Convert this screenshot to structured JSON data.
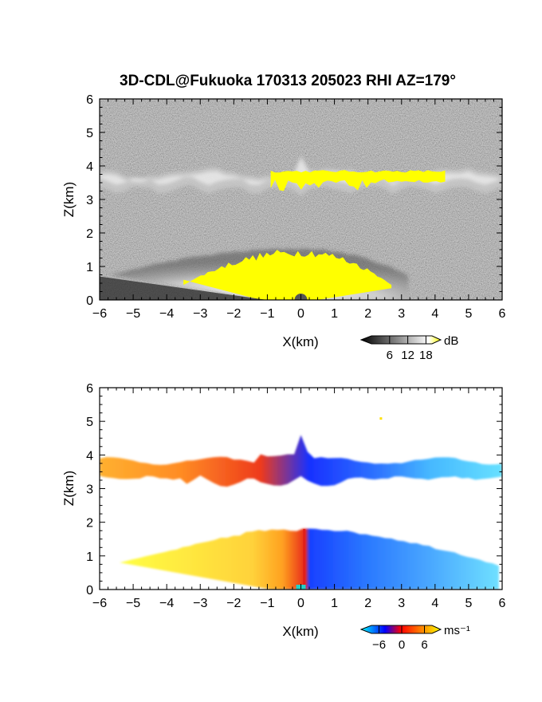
{
  "title": "3D-CDL@Fukuoka 170313 205023 RHI AZ=179°",
  "chart_data": [
    {
      "type": "heatmap",
      "title": "3D-CDL@Fukuoka 170313 205023 RHI AZ=179°",
      "xlabel": "X(km)",
      "ylabel": "Z(km)",
      "xlim": [
        -6,
        6
      ],
      "ylim": [
        0,
        6
      ],
      "xticks": [
        "-6",
        "-5",
        "-4",
        "-3",
        "-2",
        "-1",
        "0",
        "1",
        "2",
        "3",
        "4",
        "5",
        "6"
      ],
      "yticks": [
        "0",
        "1",
        "2",
        "3",
        "4",
        "5",
        "6"
      ],
      "quantity": "signal-to-noise ratio",
      "colorbar": {
        "unit": "dB",
        "ticks": [
          "6",
          "12",
          "18"
        ],
        "range": [
          0,
          20
        ],
        "colors": [
          "#000000",
          "#ffffff",
          "#ffff00"
        ]
      },
      "background": "noise",
      "features": [
        {
          "name": "cloud layer",
          "x_range": [
            -6,
            6
          ],
          "z_range": [
            3.1,
            4.0
          ],
          "peak_z": 3.75,
          "saturated_x_range": [
            -0.9,
            4.3
          ]
        },
        {
          "name": "boundary layer",
          "x_range": [
            -5.7,
            3.2
          ],
          "z_range": [
            0,
            1.5
          ],
          "saturated_x_range": [
            -3.5,
            2.7
          ]
        }
      ]
    },
    {
      "type": "heatmap",
      "xlabel": "X(km)",
      "ylabel": "Z(km)",
      "xlim": [
        -6,
        6
      ],
      "ylim": [
        0,
        6
      ],
      "xticks": [
        "-6",
        "-5",
        "-4",
        "-3",
        "-2",
        "-1",
        "0",
        "1",
        "2",
        "3",
        "4",
        "5",
        "6"
      ],
      "yticks": [
        "0",
        "1",
        "2",
        "3",
        "4",
        "5",
        "6"
      ],
      "quantity": "radial velocity",
      "colorbar": {
        "unit": "ms⁻¹",
        "ticks": [
          "−6",
          "0",
          "6"
        ],
        "range": [
          -8,
          8
        ],
        "colors": [
          "#00ffff",
          "#0000ff",
          "#ff0000",
          "#ffff00"
        ]
      },
      "features": [
        {
          "name": "cloud layer",
          "x_range": [
            -6,
            6
          ],
          "z_range": [
            3.0,
            4.5
          ],
          "velocity_left": 6,
          "velocity_right": -6,
          "zero_crossing_x": 0.1
        },
        {
          "name": "boundary layer",
          "x_range": [
            -5.4,
            5.9
          ],
          "z_range": [
            0,
            1.8
          ],
          "velocity_left": 6,
          "velocity_right": -6,
          "zero_crossing_x": 0.1
        }
      ]
    }
  ]
}
